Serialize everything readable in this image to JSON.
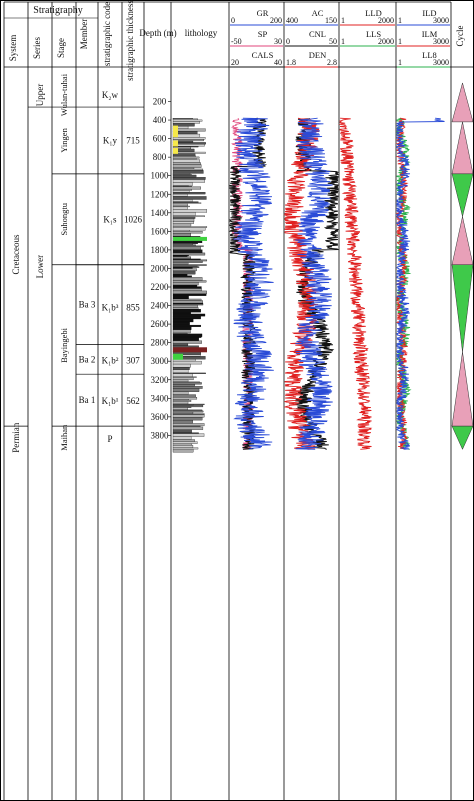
{
  "header": {
    "stratigraphy": "Stratigraphy",
    "system": "System",
    "series": "Series",
    "stage": "Stage",
    "member": "Member",
    "code": "stratigraphic code",
    "thickness": "stratigraphic thickness(m)",
    "depth": "Depth (m)",
    "lithology": "lithology",
    "cycle": "Cycle"
  },
  "track_headers": {
    "t1": [
      {
        "name": "GR",
        "min": "0",
        "max": "200",
        "color": "#2a4bd7"
      },
      {
        "name": "SP",
        "min": "-50",
        "max": "30",
        "color": "#e0457b"
      },
      {
        "name": "CALS",
        "min": "20",
        "max": "40",
        "color": "#111111"
      }
    ],
    "t2": [
      {
        "name": "AC",
        "min": "400",
        "max": "150",
        "color": "#2a4bd7"
      },
      {
        "name": "CNL",
        "min": "0",
        "max": "50",
        "color": "#111111"
      },
      {
        "name": "DEN",
        "min": "1.8",
        "max": "2.8",
        "color": "#e02020"
      }
    ],
    "t3": [
      {
        "name": "LLD",
        "min": "1",
        "max": "2000",
        "color": "#e02020"
      },
      {
        "name": "LLS",
        "min": "1",
        "max": "2000",
        "color": "#2bb24c"
      }
    ],
    "t4": [
      {
        "name": "ILD",
        "min": "1",
        "max": "3000",
        "color": "#2a4bd7"
      },
      {
        "name": "ILM",
        "min": "1",
        "max": "3000",
        "color": "#e02020"
      },
      {
        "name": "LL8",
        "min": "1",
        "max": "3000",
        "color": "#2bb24c"
      }
    ]
  },
  "depth_ticks": [
    "200",
    "400",
    "600",
    "800",
    "1000",
    "1200",
    "1400",
    "1600",
    "1800",
    "2000",
    "2200",
    "2400",
    "2600",
    "2800",
    "3000",
    "3200",
    "3400",
    "3600",
    "3800"
  ],
  "systems": [
    {
      "label": "Cretaceous",
      "top": 0,
      "bottom": 3700
    },
    {
      "label": "Permian",
      "top": 3700,
      "bottom": 3950
    }
  ],
  "series": [
    {
      "label": "Upper",
      "top": 0,
      "bottom": 260
    },
    {
      "label": "Lower",
      "top": 260,
      "bottom": 3700
    }
  ],
  "stages": [
    {
      "label": "Wulan-tuhai",
      "top": 0,
      "bottom": 260
    },
    {
      "label": "Yingen",
      "top": 260,
      "bottom": 980
    },
    {
      "label": "Suhongtu",
      "top": 980,
      "bottom": 1960
    },
    {
      "label": "Bayingebi",
      "top": 1960,
      "bottom": 3700
    },
    {
      "label": "Maihan",
      "top": 3700,
      "bottom": 3950
    }
  ],
  "members": [
    {
      "label": "Ba 3",
      "top": 1960,
      "bottom": 2820
    },
    {
      "label": "Ba 2",
      "top": 2820,
      "bottom": 3140
    },
    {
      "label": "Ba 1",
      "top": 3140,
      "bottom": 3700
    }
  ],
  "codes": [
    {
      "label": "K₂w",
      "y": 130
    },
    {
      "label": "K₁y",
      "y": 620
    },
    {
      "label": "K₁s",
      "y": 1470
    },
    {
      "label": "K₁b³",
      "y": 2420
    },
    {
      "label": "K₁b²",
      "y": 2990
    },
    {
      "label": "K₁b¹",
      "y": 3430
    },
    {
      "label": "P",
      "y": 3840
    }
  ],
  "thicknesses": [
    {
      "label": "715",
      "y": 620
    },
    {
      "label": "1026",
      "y": 1470
    },
    {
      "label": "855",
      "y": 2420
    },
    {
      "label": "307",
      "y": 2990
    },
    {
      "label": "562",
      "y": 3430
    }
  ],
  "cycles": [
    {
      "top": 0,
      "bottom": 420,
      "dir": "up",
      "color": "#e8a0b8"
    },
    {
      "top": 420,
      "bottom": 980,
      "dir": "up",
      "color": "#e8a0b8"
    },
    {
      "top": 980,
      "bottom": 1440,
      "dir": "down",
      "color": "#3fc94a"
    },
    {
      "top": 1440,
      "bottom": 1960,
      "dir": "up",
      "color": "#e8a0b8"
    },
    {
      "top": 1960,
      "bottom": 2900,
      "dir": "down",
      "color": "#3fc94a"
    },
    {
      "top": 2900,
      "bottom": 3700,
      "dir": "up",
      "color": "#e8a0b8"
    },
    {
      "top": 3700,
      "bottom": 3950,
      "dir": "down",
      "color": "#3fc94a"
    }
  ]
}
